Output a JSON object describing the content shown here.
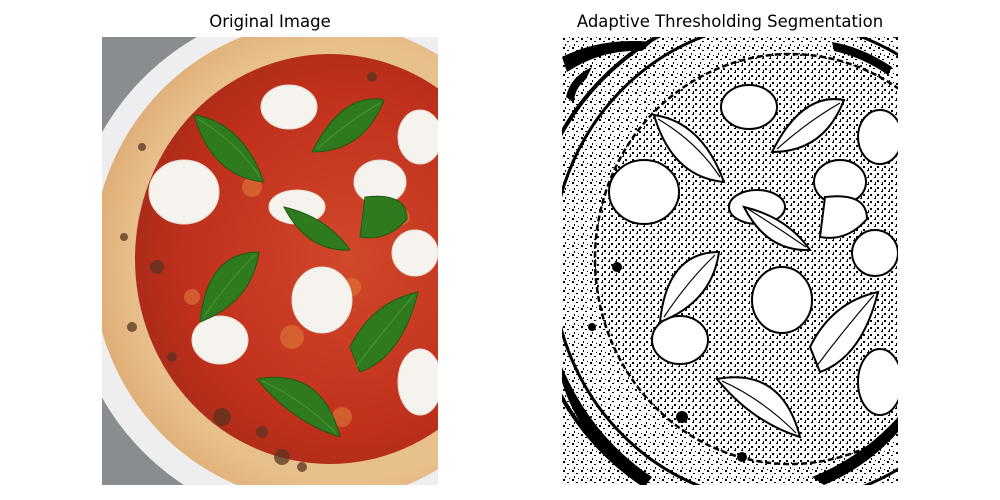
{
  "figure": {
    "left_title": "Original Image",
    "right_title": "Adaptive Thresholding Segmentation"
  },
  "colors": {
    "background": "#ffffff",
    "plate": "#e8e8ea",
    "crust": "#e2b07a",
    "crust_char": "#5a3420",
    "sauce": "#c8321e",
    "cheese": "#f6f3ee",
    "basil": "#2f7a1e",
    "threshold_ink": "#000000"
  },
  "left_panel": {
    "subject": "pizza-photo",
    "toppings": [
      "mozzarella",
      "basil"
    ]
  },
  "right_panel": {
    "subject": "binary-threshold-map"
  }
}
